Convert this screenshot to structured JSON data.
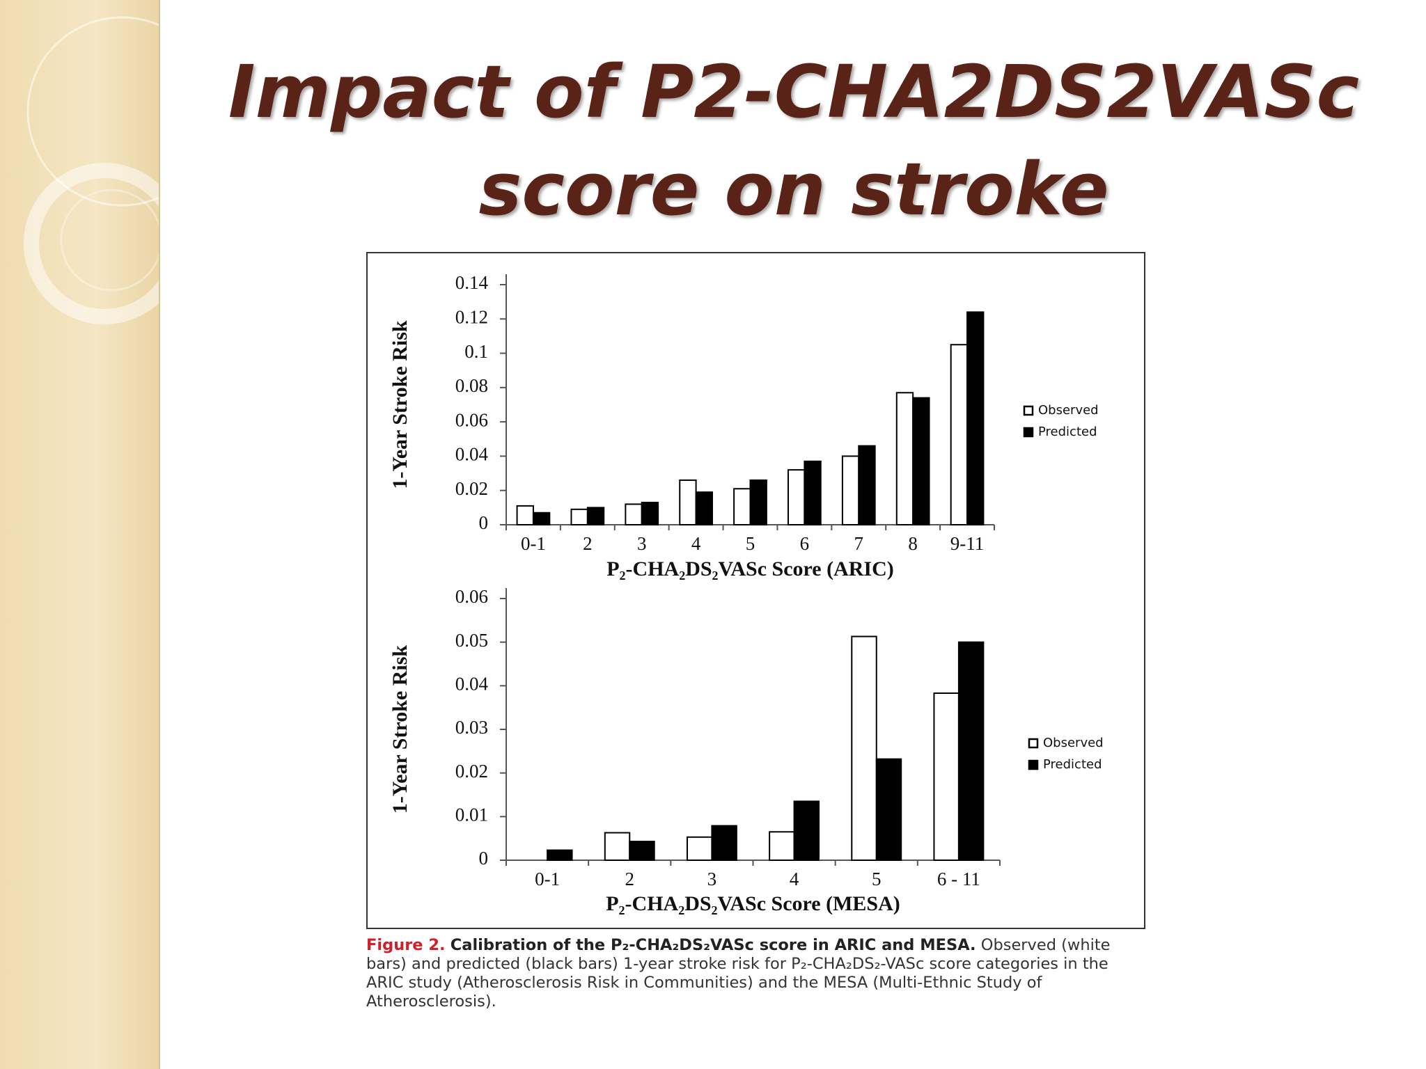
{
  "title": "Impact of P2-CHA2DS2VASc score on stroke",
  "chart_data": [
    {
      "type": "bar",
      "y_label": "1-Year Stroke Risk",
      "x_label": "P₂-CHA₂DS₂VASc Score (ARIC)",
      "categories": [
        "0-1",
        "2",
        "3",
        "4",
        "5",
        "6",
        "7",
        "8",
        "9-11"
      ],
      "series": [
        {
          "name": "Observed",
          "color": "#ffffff",
          "values": [
            0.011,
            0.009,
            0.012,
            0.026,
            0.021,
            0.032,
            0.04,
            0.077,
            0.105
          ]
        },
        {
          "name": "Predicted",
          "color": "#000000",
          "values": [
            0.007,
            0.01,
            0.013,
            0.019,
            0.026,
            0.037,
            0.046,
            0.074,
            0.124
          ]
        }
      ],
      "ylim": [
        0,
        0.14
      ],
      "yticks": [
        0,
        0.02,
        0.04,
        0.06,
        0.08,
        0.1,
        0.12,
        0.14
      ],
      "legend": "right"
    },
    {
      "type": "bar",
      "y_label": "1-Year Stroke Risk",
      "x_label": "P₂-CHA₂DS₂VASc Score (MESA)",
      "categories": [
        "0-1",
        "2",
        "3",
        "4",
        "5",
        "6 - 11"
      ],
      "series": [
        {
          "name": "Observed",
          "color": "#ffffff",
          "values": [
            0,
            0.0063,
            0.0053,
            0.0065,
            0.0513,
            0.0383
          ]
        },
        {
          "name": "Predicted",
          "color": "#000000",
          "values": [
            0.0023,
            0.0043,
            0.0079,
            0.0135,
            0.0232,
            0.05
          ]
        }
      ],
      "ylim": [
        0,
        0.06
      ],
      "yticks": [
        0,
        0.01,
        0.02,
        0.03,
        0.04,
        0.05,
        0.06
      ],
      "legend": "right"
    }
  ],
  "caption": {
    "label": "Figure 2.",
    "heading": "Calibration of the P₂-CHA₂DS₂VASc score in ARIC and MESA.",
    "body": "Observed (white bars) and predicted (black bars) 1-year stroke risk for P₂-CHA₂DS₂-VASc score categories in the ARIC study (Atherosclerosis Risk in Communities) and the MESA (Multi-Ethnic Study of Atherosclerosis)."
  }
}
